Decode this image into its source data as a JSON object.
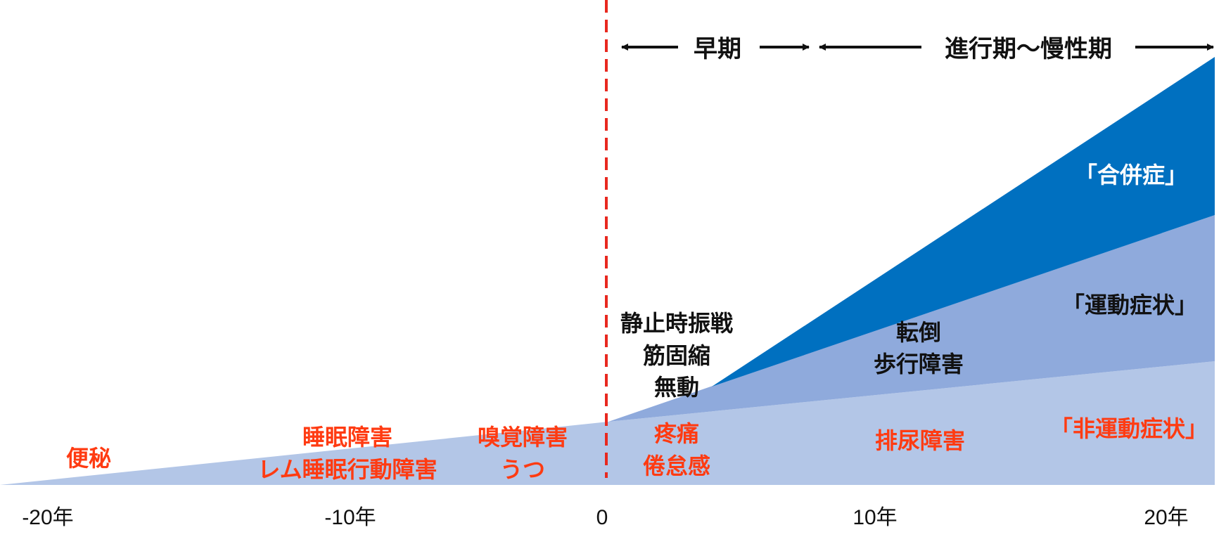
{
  "colors": {
    "non_motor": "#b3c6e7",
    "motor": "#8faadc",
    "complication": "#0070c0",
    "onset_line": "#e8281f",
    "symptom_text": "#ff3b12"
  },
  "phases": {
    "early": "早期",
    "advanced": "進行期〜慢性期"
  },
  "categories": {
    "complication": "「合併症」",
    "motor": "「運動症状」",
    "non_motor": "「非運動症状」"
  },
  "symptoms": {
    "constipation": "便秘",
    "sleep_disorder": "睡眠障害",
    "rbd": "レム睡眠行動障害",
    "olfactory": "嗅覚障害",
    "depression": "うつ",
    "tremor": "静止時振戦",
    "rigidity": "筋固縮",
    "akinesia": "無動",
    "pain": "疼痛",
    "fatigue": "倦怠感",
    "falls": "転倒",
    "gait": "歩行障害",
    "urinary": "排尿障害"
  },
  "axis": {
    "ticks": [
      "-20年",
      "-10年",
      "0",
      "10年",
      "20年"
    ]
  }
}
